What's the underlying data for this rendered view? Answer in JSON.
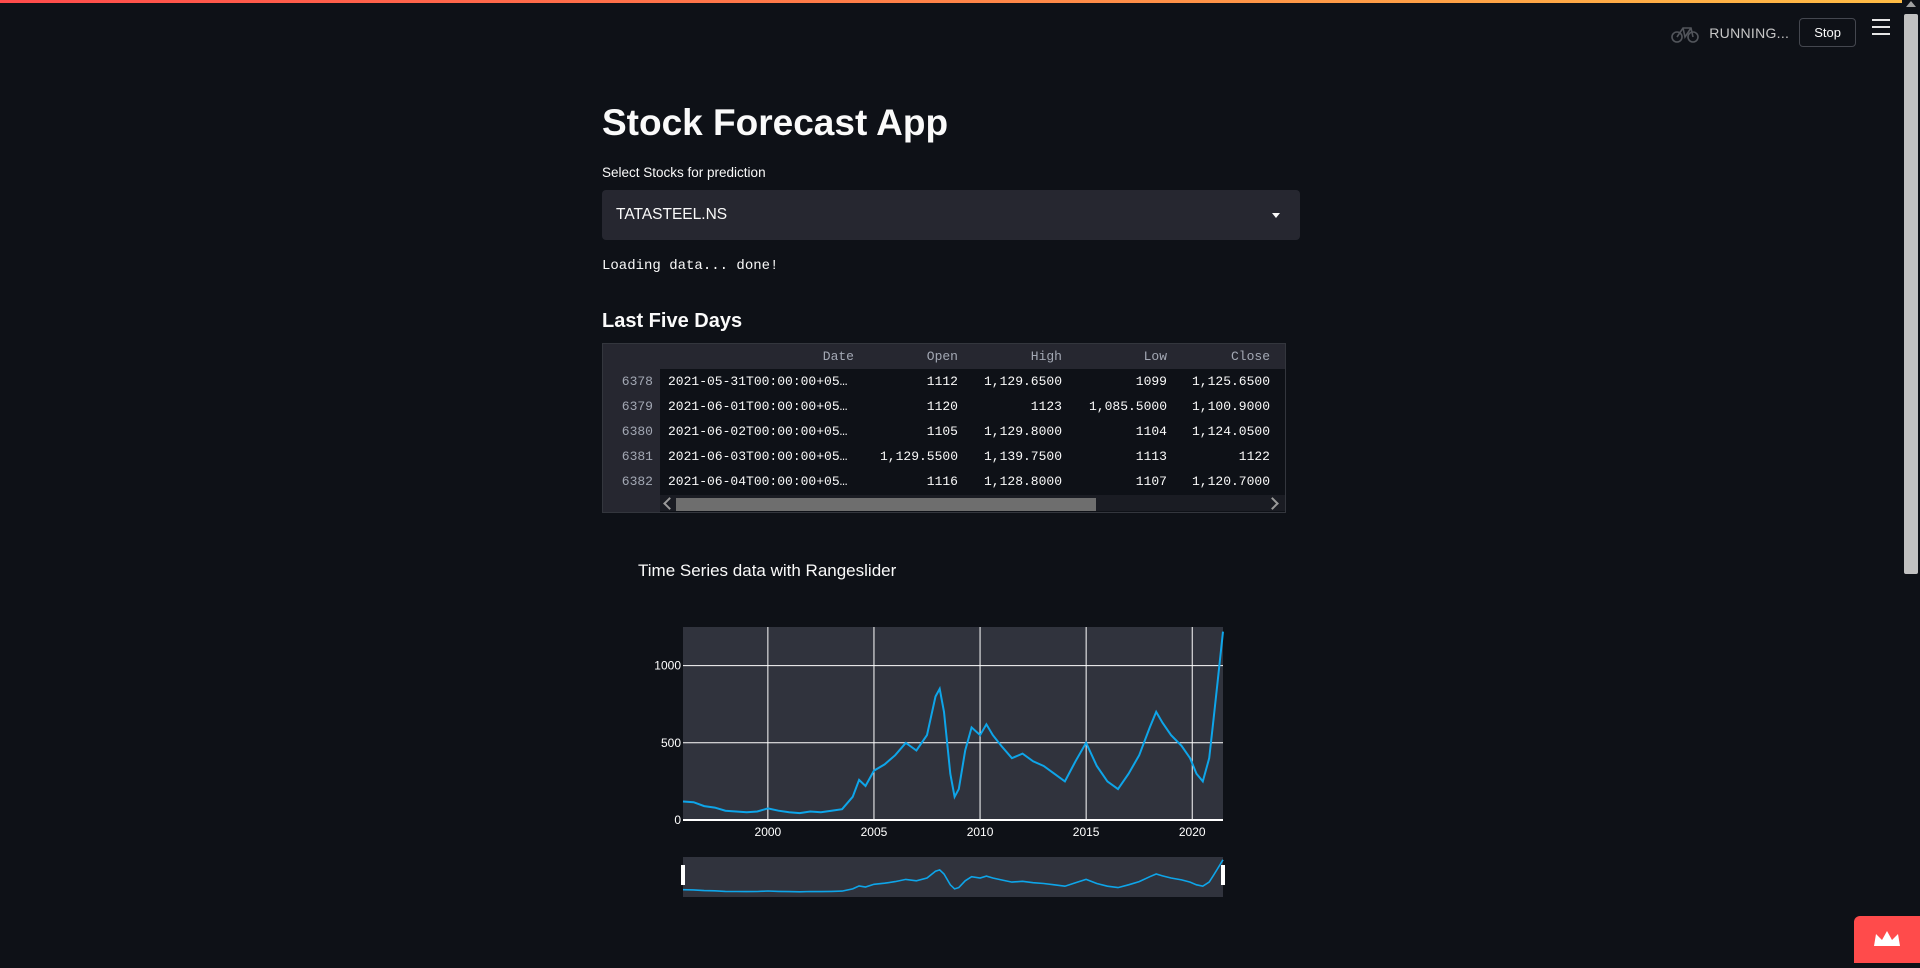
{
  "header": {
    "status_text": "RUNNING...",
    "stop_label": "Stop",
    "menu_icon": "hamburger-icon",
    "running_icon": "bicycle-icon"
  },
  "app": {
    "title": "Stock Forecast App",
    "select_label": "Select Stocks for prediction",
    "selected_stock": "TATASTEEL.NS",
    "loading_text": "Loading data... done!",
    "table_heading": "Last Five Days"
  },
  "table": {
    "columns": [
      "Date",
      "Open",
      "High",
      "Low",
      "Close"
    ],
    "rows": [
      {
        "index": "6378",
        "date": "2021-05-31T00:00:00+05…",
        "open": "1112",
        "high": "1,129.6500",
        "low": "1099",
        "close": "1,125.6500"
      },
      {
        "index": "6379",
        "date": "2021-06-01T00:00:00+05…",
        "open": "1120",
        "high": "1123",
        "low": "1,085.5000",
        "close": "1,100.9000"
      },
      {
        "index": "6380",
        "date": "2021-06-02T00:00:00+05…",
        "open": "1105",
        "high": "1,129.8000",
        "low": "1104",
        "close": "1,124.0500"
      },
      {
        "index": "6381",
        "date": "2021-06-03T00:00:00+05…",
        "open": "1,129.5500",
        "high": "1,139.7500",
        "low": "1113",
        "close": "1122"
      },
      {
        "index": "6382",
        "date": "2021-06-04T00:00:00+05…",
        "open": "1116",
        "high": "1,128.8000",
        "low": "1107",
        "close": "1,120.7000"
      }
    ]
  },
  "chart_data": {
    "type": "line",
    "title": "Time Series data with Rangeslider",
    "xlabel": "",
    "ylabel": "",
    "xlim": [
      1996.0,
      2021.45
    ],
    "ylim": [
      0,
      1250
    ],
    "x_ticks": [
      2000,
      2005,
      2010,
      2015,
      2020
    ],
    "y_ticks": [
      0,
      500,
      1000
    ],
    "grid": true,
    "line_color": "#0ea5e9",
    "rangeslider": true,
    "series": [
      {
        "x": [
          1996.0,
          1996.5,
          1997.0,
          1997.5,
          1998.0,
          1998.5,
          1999.0,
          1999.5,
          2000.0,
          2000.5,
          2001.0,
          2001.5,
          2002.0,
          2002.5,
          2003.0,
          2003.5,
          2004.0,
          2004.3,
          2004.6,
          2005.0,
          2005.5,
          2006.0,
          2006.5,
          2007.0,
          2007.5,
          2007.9,
          2008.1,
          2008.3,
          2008.6,
          2008.8,
          2009.0,
          2009.3,
          2009.6,
          2010.0,
          2010.3,
          2010.6,
          2011.0,
          2011.5,
          2012.0,
          2012.5,
          2013.0,
          2013.5,
          2014.0,
          2014.5,
          2015.0,
          2015.5,
          2016.0,
          2016.5,
          2017.0,
          2017.5,
          2018.0,
          2018.3,
          2018.6,
          2019.0,
          2019.5,
          2019.9,
          2020.2,
          2020.5,
          2020.8,
          2021.0,
          2021.2,
          2021.45
        ],
        "y": [
          120,
          115,
          90,
          80,
          60,
          55,
          50,
          55,
          75,
          60,
          50,
          45,
          55,
          50,
          60,
          70,
          150,
          260,
          220,
          320,
          360,
          420,
          500,
          450,
          550,
          800,
          850,
          700,
          300,
          150,
          200,
          450,
          600,
          550,
          620,
          550,
          480,
          400,
          430,
          380,
          350,
          300,
          250,
          380,
          500,
          350,
          250,
          200,
          300,
          420,
          600,
          700,
          630,
          550,
          480,
          400,
          300,
          250,
          400,
          650,
          900,
          1220
        ]
      }
    ]
  },
  "badge": {
    "icon": "crown-icon"
  }
}
